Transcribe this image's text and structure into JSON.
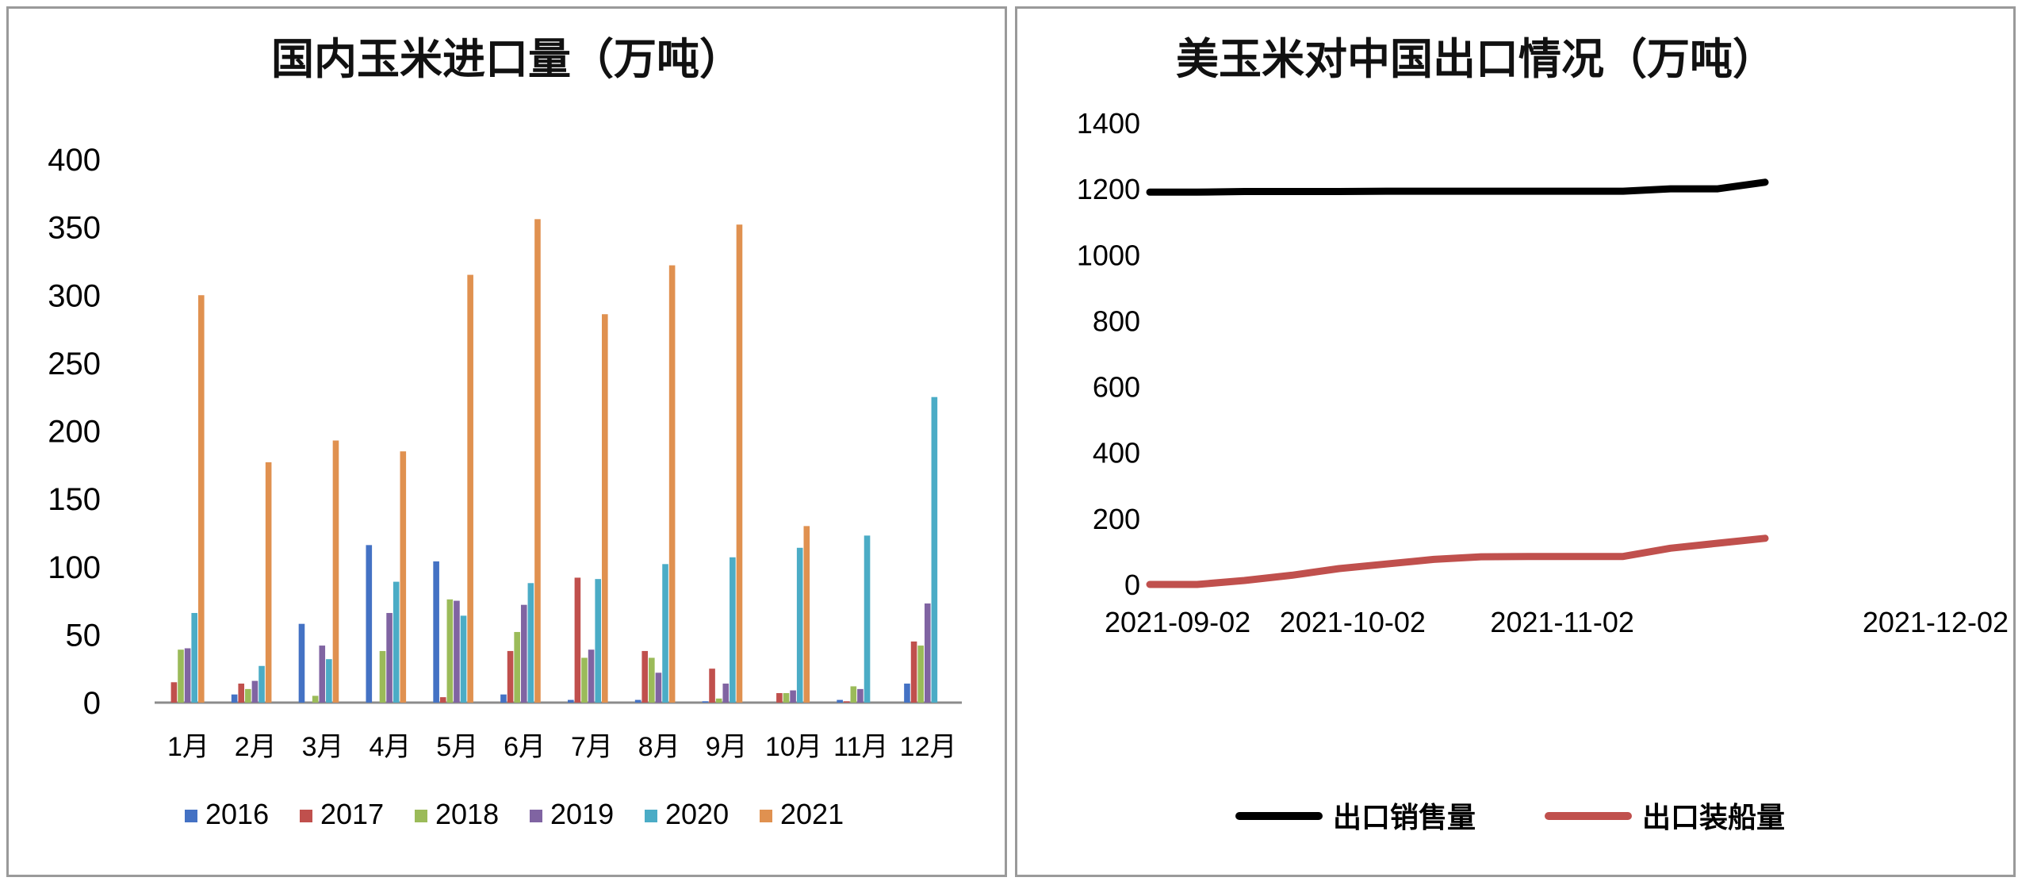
{
  "chart_data": [
    {
      "type": "bar",
      "title": "国内玉米进口量（万吨）",
      "categories": [
        "1月",
        "2月",
        "3月",
        "4月",
        "5月",
        "6月",
        "7月",
        "8月",
        "9月",
        "10月",
        "11月",
        "12月"
      ],
      "ylim": [
        0,
        400
      ],
      "yticks": [
        "0",
        "50",
        "100",
        "150",
        "200",
        "250",
        "300",
        "350",
        "400"
      ],
      "grid": false,
      "legend_position": "bottom",
      "series": [
        {
          "name": "2016",
          "color": "#4472C4",
          "values": [
            0,
            6,
            58,
            116,
            104,
            6,
            2,
            2,
            1,
            0,
            2,
            14
          ]
        },
        {
          "name": "2017",
          "color": "#C0504D",
          "values": [
            15,
            14,
            0,
            0,
            4,
            38,
            92,
            38,
            25,
            7,
            1,
            45
          ]
        },
        {
          "name": "2018",
          "color": "#9BBB59",
          "values": [
            39,
            10,
            5,
            38,
            76,
            52,
            33,
            33,
            3,
            7,
            12,
            42
          ]
        },
        {
          "name": "2019",
          "color": "#8064A2",
          "values": [
            40,
            16,
            42,
            66,
            75,
            72,
            39,
            22,
            14,
            9,
            10,
            73
          ]
        },
        {
          "name": "2020",
          "color": "#4BACC6",
          "values": [
            66,
            27,
            32,
            89,
            64,
            88,
            91,
            102,
            107,
            114,
            123,
            225
          ]
        },
        {
          "name": "2021",
          "color": "#E09150",
          "values": [
            300,
            177,
            193,
            185,
            315,
            356,
            286,
            322,
            352,
            130,
            0,
            0
          ]
        }
      ]
    },
    {
      "type": "line",
      "title": "美玉米对中国出口情况（万吨）",
      "x": [
        "2021-09-02",
        "2021-09-09",
        "2021-09-16",
        "2021-09-23",
        "2021-09-30",
        "2021-10-07",
        "2021-10-14",
        "2021-10-21",
        "2021-10-28",
        "2021-11-04",
        "2021-11-11",
        "2021-11-18",
        "2021-11-25",
        "2021-12-02"
      ],
      "xticks": [
        "2021-09-02",
        "2021-10-02",
        "2021-11-02",
        "2021-12-02"
      ],
      "ylim": [
        0,
        1400
      ],
      "yticks": [
        "0",
        "200",
        "400",
        "600",
        "800",
        "1000",
        "1200",
        "1400"
      ],
      "grid": false,
      "legend_position": "bottom",
      "series": [
        {
          "name": "出口销售量",
          "color": "#000000",
          "values": [
            1190,
            1190,
            1192,
            1192,
            1192,
            1193,
            1193,
            1193,
            1193,
            1193,
            1193,
            1200,
            1200,
            1220
          ]
        },
        {
          "name": "出口装船量",
          "color": "#C0504D",
          "values": [
            0,
            0,
            12,
            28,
            48,
            62,
            76,
            84,
            85,
            85,
            85,
            110,
            125,
            140
          ]
        }
      ]
    }
  ]
}
